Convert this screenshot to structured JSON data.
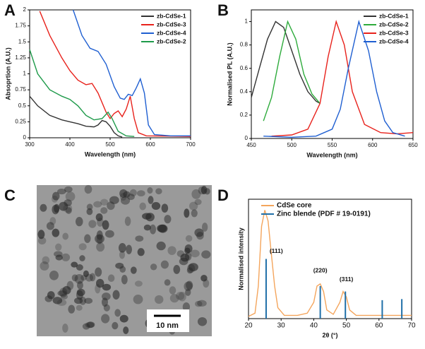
{
  "chart_data": [
    {
      "type": "line",
      "panel_label": "A",
      "xlabel": "Wavelength (nm)",
      "ylabel": "Absoprtion (A.U.)",
      "xlim": [
        300,
        700
      ],
      "xticks": [
        300,
        400,
        500,
        600,
        700
      ],
      "ylim": [
        0,
        2
      ],
      "yticks": [
        0,
        0.25,
        0.5,
        0.75,
        1,
        1.25,
        1.5,
        1.75,
        2
      ],
      "legend": "upper right",
      "series": [
        {
          "name": "zb-CdSe-1",
          "color": "#333333",
          "x": [
            300,
            320,
            350,
            380,
            400,
            420,
            440,
            460,
            470,
            480,
            490,
            500,
            510,
            520,
            530
          ],
          "values": [
            0.65,
            0.5,
            0.35,
            0.28,
            0.25,
            0.22,
            0.18,
            0.17,
            0.2,
            0.27,
            0.25,
            0.18,
            0.08,
            0.03,
            0.01
          ]
        },
        {
          "name": "zb-CdSe-3",
          "color": "#e8221c",
          "x": [
            325,
            350,
            380,
            400,
            420,
            440,
            455,
            470,
            490,
            500,
            510,
            520,
            530,
            540,
            550,
            560,
            570,
            590,
            700
          ],
          "values": [
            1.98,
            1.6,
            1.25,
            1.05,
            0.9,
            0.83,
            0.85,
            0.7,
            0.4,
            0.3,
            0.38,
            0.42,
            0.33,
            0.45,
            0.65,
            0.3,
            0.08,
            0.03,
            0.02
          ]
        },
        {
          "name": "zb-CdSe-4",
          "color": "#1f5fd1",
          "x": [
            408,
            430,
            450,
            470,
            490,
            510,
            525,
            535,
            545,
            555,
            565,
            575,
            585,
            595,
            610,
            650,
            700
          ],
          "values": [
            2.0,
            1.6,
            1.4,
            1.35,
            1.15,
            0.8,
            0.62,
            0.6,
            0.68,
            0.66,
            0.78,
            0.92,
            0.7,
            0.2,
            0.05,
            0.03,
            0.03
          ]
        },
        {
          "name": "zb-CdSe-2",
          "color": "#1e9a4a",
          "x": [
            300,
            320,
            350,
            380,
            400,
            420,
            440,
            460,
            480,
            495,
            505,
            520,
            540,
            560
          ],
          "values": [
            1.38,
            1.0,
            0.75,
            0.65,
            0.6,
            0.5,
            0.35,
            0.28,
            0.3,
            0.4,
            0.3,
            0.1,
            0.03,
            0.02
          ]
        }
      ]
    },
    {
      "type": "line",
      "panel_label": "B",
      "xlabel": "Wavelength (nm)",
      "ylabel": "Normalised PL (A.U.)",
      "xlim": [
        450,
        650
      ],
      "xticks": [
        450,
        500,
        550,
        600,
        650
      ],
      "ylim": [
        0,
        1.1
      ],
      "yticks": [
        0,
        0.2,
        0.4,
        0.6,
        0.8,
        1
      ],
      "legend": "upper right",
      "series": [
        {
          "name": "zb-CdSe-1",
          "color": "#333333",
          "x": [
            450,
            460,
            470,
            480,
            490,
            500,
            510,
            520,
            530,
            535
          ],
          "values": [
            0.35,
            0.6,
            0.85,
            1.0,
            0.95,
            0.75,
            0.55,
            0.4,
            0.32,
            0.3
          ]
        },
        {
          "name": "zb-CdSe-2",
          "color": "#2eab3c",
          "x": [
            465,
            475,
            485,
            495,
            505,
            515,
            525,
            535
          ],
          "values": [
            0.15,
            0.35,
            0.7,
            1.0,
            0.85,
            0.55,
            0.38,
            0.3
          ]
        },
        {
          "name": "zb-CdSe-3",
          "color": "#e8221c",
          "x": [
            475,
            500,
            520,
            535,
            545,
            555,
            565,
            575,
            590,
            610,
            630,
            650
          ],
          "values": [
            0.02,
            0.03,
            0.08,
            0.3,
            0.7,
            1.0,
            0.8,
            0.4,
            0.12,
            0.05,
            0.04,
            0.05
          ]
        },
        {
          "name": "zb-CdSe-4",
          "color": "#1f5fd1",
          "x": [
            465,
            500,
            530,
            550,
            560,
            570,
            583,
            595,
            605,
            615,
            625,
            640
          ],
          "values": [
            0.02,
            0.01,
            0.02,
            0.08,
            0.25,
            0.6,
            1.0,
            0.75,
            0.4,
            0.15,
            0.05,
            0.02
          ]
        }
      ]
    },
    {
      "type": "line",
      "panel_label": "D",
      "xlabel": "2θ (°)",
      "ylabel": "Normalised intensity",
      "xlim": [
        20,
        70
      ],
      "xticks": [
        20,
        30,
        40,
        50,
        60,
        70
      ],
      "ylim": [
        0,
        1.1
      ],
      "legend": "upper left",
      "annotations": [
        {
          "text": "(111)",
          "x": 28.5,
          "y": 0.62
        },
        {
          "text": "(220)",
          "x": 42,
          "y": 0.44
        },
        {
          "text": "(311)",
          "x": 50,
          "y": 0.36
        }
      ],
      "series": [
        {
          "name": "CdSe core",
          "color": "#f4a55c",
          "x": [
            20,
            22,
            23,
            24,
            25,
            26,
            27,
            28,
            29,
            31,
            35,
            38,
            40,
            41,
            42,
            43,
            44,
            46,
            48,
            49,
            50,
            51,
            53,
            60,
            70
          ],
          "values": [
            0.02,
            0.05,
            0.3,
            0.85,
            1.0,
            0.9,
            0.6,
            0.3,
            0.1,
            0.03,
            0.03,
            0.05,
            0.15,
            0.3,
            0.32,
            0.25,
            0.08,
            0.04,
            0.15,
            0.25,
            0.2,
            0.08,
            0.03,
            0.03,
            0.03
          ]
        },
        {
          "name": "Zinc blende (PDF # 19-0191)",
          "color": "#1f6fa8",
          "style": "stick",
          "x": [
            25.4,
            42,
            49.7,
            61,
            67
          ],
          "values": [
            0.55,
            0.3,
            0.25,
            0.17,
            0.18
          ]
        }
      ]
    }
  ],
  "image_panel": {
    "panel_label": "C",
    "scale_bar": "10 nm"
  }
}
